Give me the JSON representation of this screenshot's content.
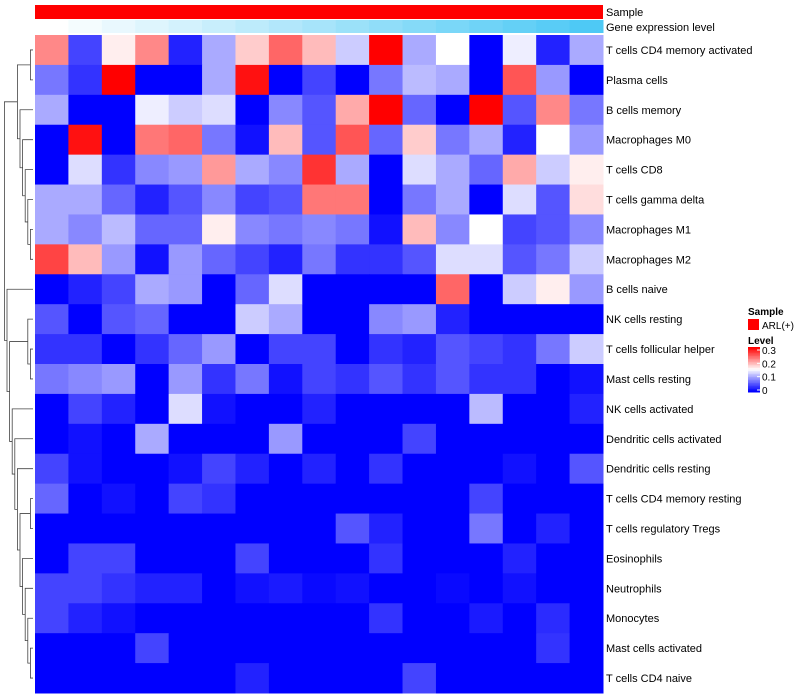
{
  "chart_data": {
    "type": "heatmap",
    "title": "",
    "annotations": [
      {
        "name": "Sample",
        "legend_entries": [
          "ARL(+)"
        ],
        "colors": [
          "#ff0000"
        ]
      },
      {
        "name": "Gene expression level",
        "gradient": [
          "#ffffff",
          "#4ec9f5"
        ]
      }
    ],
    "rows": [
      "T cells CD4 memory activated",
      "Plasma cells",
      "B cells memory",
      "Macrophages M0",
      "T cells CD8",
      "T cells gamma delta",
      "Macrophages M1",
      "Macrophages M2",
      "B cells naive",
      "NK cells resting",
      "T cells follicular helper",
      "Mast cells resting",
      "NK cells activated",
      "Dendritic cells activated",
      "Dendritic cells resting",
      "T cells CD4 memory resting",
      "T cells regulatory  Tregs",
      "Eosinophils",
      "Neutrophils",
      "Monocytes",
      "Mast cells activated",
      "T cells CD4 naive"
    ],
    "n_columns": 17,
    "values": [
      [
        0.22,
        0.04,
        0.16,
        0.22,
        0.02,
        0.1,
        0.18,
        0.24,
        0.19,
        0.12,
        0.3,
        0.1,
        0.15,
        0.0,
        0.14,
        0.02,
        0.1
      ],
      [
        0.07,
        0.03,
        0.3,
        0.0,
        0.0,
        0.1,
        0.29,
        0.0,
        0.04,
        0.0,
        0.07,
        0.11,
        0.1,
        0.0,
        0.25,
        0.09,
        0.0
      ],
      [
        0.1,
        0.0,
        0.0,
        0.14,
        0.12,
        0.13,
        0.0,
        0.08,
        0.05,
        0.2,
        0.3,
        0.06,
        0.0,
        0.3,
        0.05,
        0.22,
        0.07
      ],
      [
        0.0,
        0.29,
        0.0,
        0.23,
        0.24,
        0.07,
        0.01,
        0.19,
        0.05,
        0.25,
        0.06,
        0.18,
        0.07,
        0.1,
        0.02,
        0.15,
        0.09
      ],
      [
        0.0,
        0.13,
        0.03,
        0.08,
        0.09,
        0.21,
        0.1,
        0.08,
        0.27,
        0.1,
        0.0,
        0.13,
        0.1,
        0.06,
        0.2,
        0.12,
        0.16
      ],
      [
        0.1,
        0.1,
        0.06,
        0.02,
        0.05,
        0.08,
        0.04,
        0.05,
        0.23,
        0.23,
        0.0,
        0.07,
        0.1,
        0.0,
        0.13,
        0.05,
        0.17
      ],
      [
        0.1,
        0.08,
        0.11,
        0.06,
        0.06,
        0.16,
        0.08,
        0.07,
        0.08,
        0.07,
        0.01,
        0.19,
        0.08,
        0.15,
        0.04,
        0.05,
        0.08
      ],
      [
        0.26,
        0.19,
        0.09,
        0.01,
        0.09,
        0.06,
        0.04,
        0.02,
        0.07,
        0.03,
        0.03,
        0.05,
        0.13,
        0.13,
        0.05,
        0.07,
        0.12
      ],
      [
        0.0,
        0.02,
        0.04,
        0.1,
        0.09,
        0.0,
        0.06,
        0.13,
        0.0,
        0.0,
        0.0,
        0.0,
        0.24,
        0.0,
        0.12,
        0.16,
        0.09
      ],
      [
        0.05,
        0.0,
        0.05,
        0.06,
        0.0,
        0.0,
        0.12,
        0.1,
        0.0,
        0.0,
        0.08,
        0.09,
        0.02,
        0.0,
        0.0,
        0.0,
        0.0
      ],
      [
        0.03,
        0.03,
        0.0,
        0.03,
        0.06,
        0.09,
        0.0,
        0.04,
        0.04,
        0.0,
        0.03,
        0.02,
        0.05,
        0.04,
        0.03,
        0.07,
        0.12
      ],
      [
        0.07,
        0.08,
        0.09,
        0.0,
        0.09,
        0.03,
        0.07,
        0.01,
        0.04,
        0.03,
        0.05,
        0.03,
        0.05,
        0.03,
        0.03,
        0.0,
        0.01
      ],
      [
        0.0,
        0.04,
        0.02,
        0.0,
        0.13,
        0.01,
        0.0,
        0.0,
        0.02,
        0.0,
        0.0,
        0.0,
        0.0,
        0.11,
        0.0,
        0.0,
        0.02
      ],
      [
        0.0,
        0.01,
        0.0,
        0.1,
        0.0,
        0.0,
        0.0,
        0.09,
        0.0,
        0.0,
        0.0,
        0.04,
        0.0,
        0.0,
        0.0,
        0.0,
        0.0
      ],
      [
        0.04,
        0.01,
        0.0,
        0.0,
        0.01,
        0.04,
        0.02,
        0.0,
        0.02,
        0.0,
        0.03,
        0.0,
        0.0,
        0.0,
        0.01,
        0.0,
        0.05
      ],
      [
        0.06,
        0.0,
        0.01,
        0.0,
        0.04,
        0.03,
        0.0,
        0.0,
        0.0,
        0.0,
        0.0,
        0.0,
        0.0,
        0.04,
        0.0,
        0.0,
        0.0
      ],
      [
        0.0,
        0.0,
        0.0,
        0.0,
        0.0,
        0.0,
        0.0,
        0.0,
        0.0,
        0.05,
        0.02,
        0.0,
        0.0,
        0.07,
        0.0,
        0.02,
        0.0
      ],
      [
        0.0,
        0.04,
        0.04,
        0.0,
        0.0,
        0.0,
        0.04,
        0.0,
        0.0,
        0.0,
        0.03,
        0.0,
        0.0,
        0.0,
        0.02,
        0.0,
        0.0
      ],
      [
        0.04,
        0.04,
        0.03,
        0.02,
        0.02,
        0.0,
        0.01,
        0.015,
        0.005,
        0.01,
        0.0,
        0.0,
        0.005,
        0.0,
        0.01,
        0.0,
        0.0
      ],
      [
        0.04,
        0.02,
        0.01,
        0.0,
        0.0,
        0.0,
        0.0,
        0.0,
        0.0,
        0.0,
        0.03,
        0.0,
        0.0,
        0.015,
        0.0,
        0.025,
        0.0
      ],
      [
        0.0,
        0.0,
        0.0,
        0.04,
        0.0,
        0.0,
        0.0,
        0.0,
        0.0,
        0.0,
        0.0,
        0.0,
        0.0,
        0.0,
        0.0,
        0.03,
        0.0
      ],
      [
        0.0,
        0.0,
        0.0,
        0.0,
        0.0,
        0.0,
        0.02,
        0.0,
        0.0,
        0.0,
        0.0,
        0.04,
        0.0,
        0.0,
        0.0,
        0.0,
        0.0
      ]
    ],
    "color_scale": {
      "low": "#0000ff",
      "mid": "#ffffff",
      "high": "#ff0000",
      "range": [
        0,
        0.3
      ]
    },
    "legend": {
      "sample_title": "Sample",
      "sample_entry": "ARL(+)",
      "level_title": "Level",
      "level_ticks": [
        "0.3",
        "0.2",
        "0.1",
        "0"
      ],
      "placement": "right"
    }
  }
}
